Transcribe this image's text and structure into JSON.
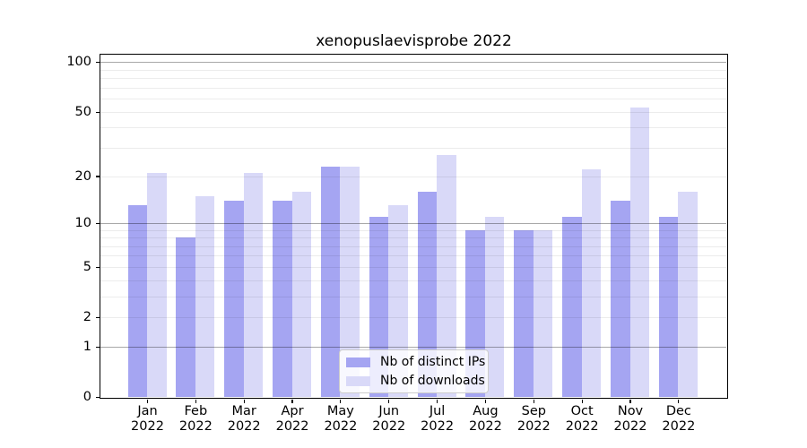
{
  "chart_data": {
    "type": "bar",
    "title": "xenopuslaevisprobe 2022",
    "categories": [
      "Jan 2022",
      "Feb 2022",
      "Mar 2022",
      "Apr 2022",
      "May 2022",
      "Jun 2022",
      "Jul 2022",
      "Aug 2022",
      "Sep 2022",
      "Oct 2022",
      "Nov 2022",
      "Dec 2022"
    ],
    "series": [
      {
        "name": "Nb of distinct IPs",
        "color": "#a5a5f2",
        "values": [
          13,
          8,
          14,
          14,
          23,
          11,
          16,
          9,
          9,
          11,
          14,
          11
        ]
      },
      {
        "name": "Nb of downloads",
        "color": "#d9d9f8",
        "values": [
          21,
          15,
          21,
          16,
          23,
          13,
          27,
          11,
          9,
          22,
          53,
          16
        ]
      }
    ],
    "xlabel": "",
    "ylabel": "",
    "y_scale": "log1p",
    "y_ticks": [
      0,
      1,
      2,
      5,
      10,
      20,
      50,
      100
    ],
    "ylim": [
      0,
      111
    ],
    "grid": {
      "major_lines": [
        1,
        10,
        100
      ],
      "minor_lines": [
        2,
        3,
        4,
        5,
        6,
        7,
        8,
        9,
        20,
        30,
        40,
        50,
        60,
        70,
        80,
        90
      ]
    },
    "legend": {
      "position": "lower center"
    },
    "colors": {
      "axis": "#000000",
      "background": "#ffffff",
      "bar_ips": "#a5a5f2",
      "bar_downloads": "#d9d9f8"
    }
  }
}
